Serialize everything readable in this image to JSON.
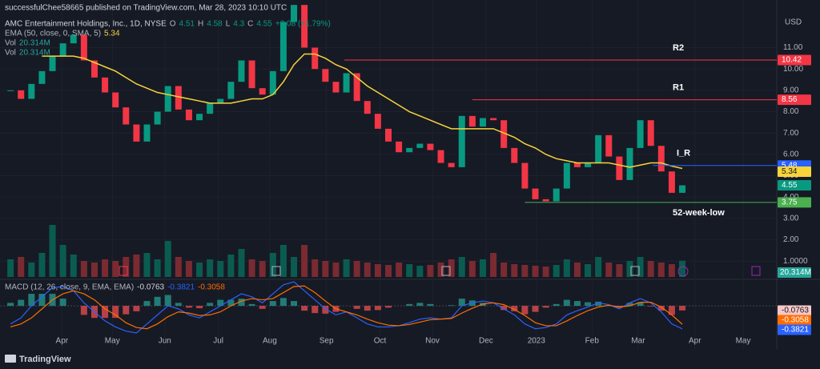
{
  "header": {
    "published": "successfulChee58665 published on TradingView.com, Mar 28, 2023 10:10 UTC",
    "symbol": "AMC Entertainment Holdings, Inc., 1D, NYSE",
    "ohlc": [
      {
        "label": "O",
        "value": 4.51
      },
      {
        "label": "H",
        "value": 4.58
      },
      {
        "label": "L",
        "value": 4.3
      },
      {
        "label": "C",
        "value": 4.55
      }
    ],
    "change": "+0.08 (+1.79%)",
    "ema_label": "EMA (50, close, 0, SMA, 5)",
    "vol_label": "Vol",
    "macd_label": "MACD (12, 26, close, 9, EMA, EMA)"
  },
  "footer": {
    "brand": "TradingView"
  },
  "chart_data": {
    "type": "candlestick",
    "currency": "USD",
    "xlim": [
      -1,
      73
    ],
    "xticks": [
      {
        "value": 4.9,
        "label": "Apr"
      },
      {
        "value": 9.7,
        "label": "May"
      },
      {
        "value": 14.7,
        "label": "Jun"
      },
      {
        "value": 19.8,
        "label": "Jul"
      },
      {
        "value": 24.7,
        "label": "Aug"
      },
      {
        "value": 30.1,
        "label": "Sep"
      },
      {
        "value": 35.2,
        "label": "Oct"
      },
      {
        "value": 40.2,
        "label": "Nov"
      },
      {
        "value": 45.3,
        "label": "Dec"
      },
      {
        "value": 50.1,
        "label": "2023"
      },
      {
        "value": 55.4,
        "label": "Feb"
      },
      {
        "value": 59.8,
        "label": "Mar"
      },
      {
        "value": 65.2,
        "label": "Apr"
      },
      {
        "value": 69.8,
        "label": "May"
      }
    ],
    "ylim": [
      0.26,
      13.23
    ],
    "yticks": [
      {
        "value": 11,
        "label": "11.00"
      },
      {
        "value": 10,
        "label": "10.00"
      },
      {
        "value": 9,
        "label": "9.00"
      },
      {
        "value": 8,
        "label": "8.00"
      },
      {
        "value": 7,
        "label": "7.00"
      },
      {
        "value": 6,
        "label": "6.00"
      },
      {
        "value": 5,
        "label": "5.00"
      },
      {
        "value": 4,
        "label": "4.00"
      },
      {
        "value": 3,
        "label": "3.00"
      },
      {
        "value": 2,
        "label": "2.00"
      },
      {
        "value": 1,
        "label": "1.0000"
      }
    ],
    "grid": true,
    "up_color": "#089981",
    "down_color": "#f23645",
    "close": [
      9.0,
      8.6,
      9.3,
      9.9,
      10.6,
      11.2,
      11.6,
      10.4,
      9.6,
      8.9,
      8.2,
      7.4,
      6.6,
      7.4,
      8.0,
      9.2,
      8.1,
      7.6,
      7.9,
      8.4,
      8.6,
      9.4,
      10.4,
      9.1,
      8.8,
      9.9,
      12.2,
      13.0,
      11.0,
      10.0,
      9.4,
      8.9,
      9.8,
      8.5,
      7.9,
      7.2,
      6.6,
      6.1,
      6.3,
      6.5,
      6.2,
      5.6,
      5.4,
      7.8,
      7.3,
      7.7,
      7.6,
      6.3,
      5.6,
      4.4,
      3.9,
      3.8,
      4.4,
      5.6,
      5.4,
      5.6,
      6.9,
      5.9,
      4.8,
      6.3,
      7.6,
      6.4,
      5.2,
      4.2,
      4.55
    ],
    "ema": {
      "color": "#f7d43a",
      "values": [
        null,
        null,
        null,
        10.6,
        10.6,
        10.6,
        10.6,
        10.5,
        10.3,
        10.1,
        9.9,
        9.6,
        9.3,
        9.1,
        8.9,
        8.8,
        8.7,
        8.6,
        8.5,
        8.4,
        8.4,
        8.4,
        8.5,
        8.6,
        8.6,
        8.8,
        9.4,
        10.2,
        10.7,
        10.7,
        10.5,
        10.2,
        10.0,
        9.6,
        9.2,
        8.9,
        8.6,
        8.3,
        8.0,
        7.8,
        7.6,
        7.4,
        7.2,
        7.2,
        7.2,
        7.2,
        7.2,
        7.0,
        6.8,
        6.5,
        6.3,
        6.0,
        5.8,
        5.7,
        5.6,
        5.6,
        5.6,
        5.6,
        5.5,
        5.4,
        5.5,
        5.6,
        5.6,
        5.45,
        5.34
      ]
    },
    "volume": {
      "vlim": [
        0,
        80
      ],
      "color": "#26a69a",
      "last_label": "20.314M",
      "values": [
        22,
        25,
        18,
        30,
        65,
        40,
        28,
        20,
        18,
        22,
        20,
        25,
        28,
        30,
        22,
        45,
        25,
        20,
        18,
        22,
        20,
        28,
        35,
        22,
        20,
        30,
        40,
        25,
        40,
        22,
        20,
        18,
        22,
        20,
        18,
        16,
        15,
        18,
        16,
        14,
        15,
        18,
        22,
        25,
        20,
        22,
        30,
        18,
        16,
        15,
        14,
        13,
        15,
        22,
        18,
        16,
        25,
        18,
        16,
        20,
        25,
        20,
        18,
        16,
        20.314
      ]
    },
    "levels": [
      {
        "name": "R2",
        "value": 10.42,
        "from": 31.8,
        "color": "#f23645"
      },
      {
        "name": "R1",
        "value": 8.56,
        "from": 44,
        "color": "#f23645"
      },
      {
        "name": "I_R",
        "value": 5.48,
        "from": 61.2,
        "color": "#2962ff"
      },
      {
        "name": "52-week-low",
        "value": 3.75,
        "from": 49,
        "color": "#4caf50"
      }
    ],
    "macd": {
      "mlim": [
        -0.57,
        0.4
      ],
      "histogram_last": -0.0763,
      "macd_color": "#2962ff",
      "signal_color": "#ff6d00",
      "macd_values": [
        -0.3,
        -0.2,
        0.0,
        0.15,
        0.3,
        0.32,
        0.25,
        0.05,
        -0.1,
        -0.25,
        -0.35,
        -0.42,
        -0.45,
        -0.3,
        -0.15,
        0.0,
        -0.05,
        -0.15,
        -0.2,
        -0.1,
        0.0,
        0.1,
        0.2,
        0.15,
        0.05,
        0.2,
        0.35,
        0.4,
        0.25,
        0.1,
        -0.05,
        -0.15,
        -0.1,
        -0.2,
        -0.3,
        -0.35,
        -0.35,
        -0.33,
        -0.28,
        -0.22,
        -0.2,
        -0.22,
        -0.2,
        0.0,
        0.05,
        0.08,
        0.05,
        -0.05,
        -0.15,
        -0.3,
        -0.38,
        -0.36,
        -0.3,
        -0.15,
        -0.08,
        -0.02,
        0.05,
        0.02,
        -0.05,
        0.05,
        0.12,
        0.05,
        -0.1,
        -0.3,
        -0.3821
      ],
      "signal_values": [
        -0.35,
        -0.3,
        -0.2,
        -0.05,
        0.1,
        0.2,
        0.25,
        0.2,
        0.1,
        -0.05,
        -0.15,
        -0.28,
        -0.36,
        -0.38,
        -0.3,
        -0.18,
        -0.1,
        -0.12,
        -0.16,
        -0.15,
        -0.1,
        0.0,
        0.08,
        0.12,
        0.1,
        0.12,
        0.22,
        0.32,
        0.33,
        0.22,
        0.08,
        -0.05,
        -0.1,
        -0.15,
        -0.22,
        -0.28,
        -0.32,
        -0.33,
        -0.31,
        -0.27,
        -0.23,
        -0.22,
        -0.21,
        -0.12,
        -0.04,
        0.03,
        0.05,
        0.02,
        -0.06,
        -0.16,
        -0.28,
        -0.33,
        -0.33,
        -0.25,
        -0.16,
        -0.08,
        -0.02,
        0.01,
        -0.02,
        0.0,
        0.06,
        0.06,
        -0.02,
        -0.15,
        -0.3058
      ]
    }
  }
}
